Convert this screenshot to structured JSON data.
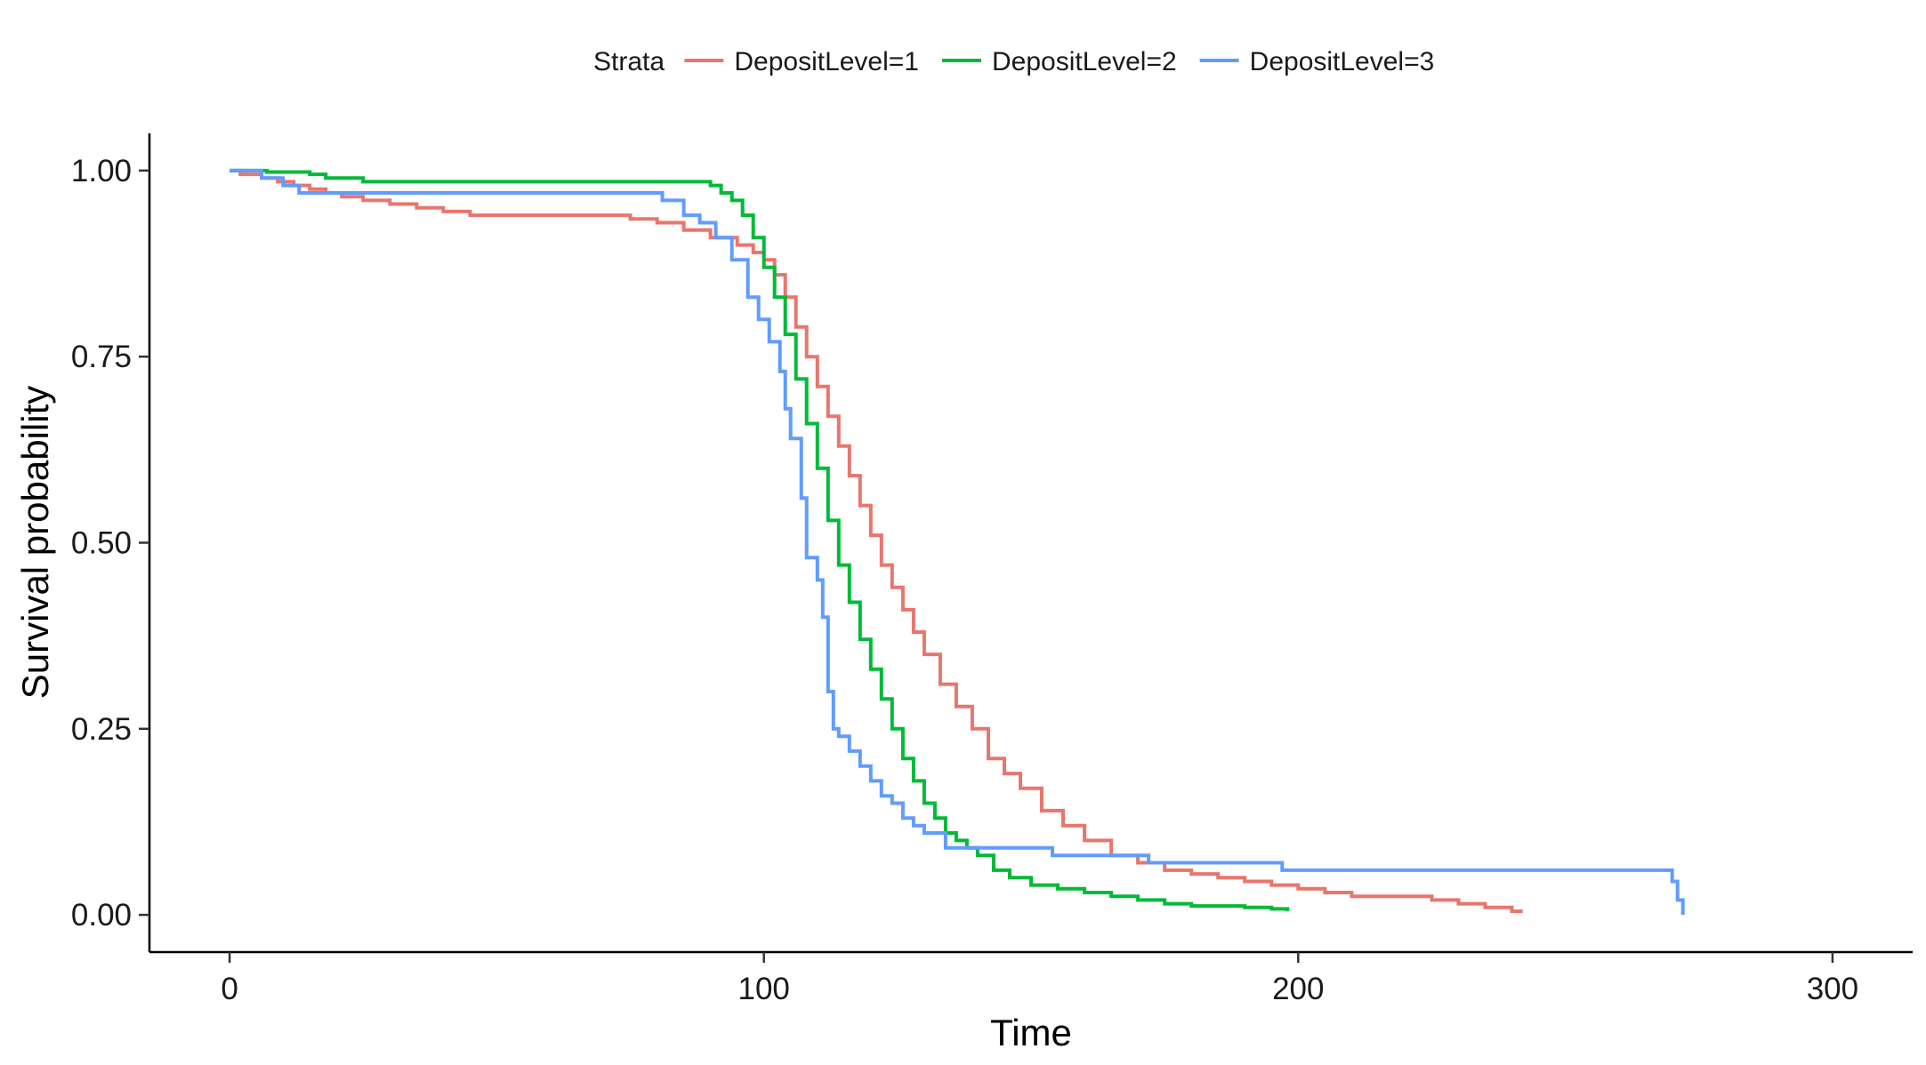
{
  "chart_data": {
    "type": "line",
    "step": true,
    "xlabel": "Time",
    "ylabel": "Survival probability",
    "xlim": [
      -15,
      315
    ],
    "ylim": [
      -0.05,
      1.05
    ],
    "xticks": [
      0,
      100,
      200,
      300
    ],
    "xtick_labels": [
      "0",
      "100",
      "200",
      "300"
    ],
    "yticks": [
      0,
      0.25,
      0.5,
      0.75,
      1.0
    ],
    "ytick_labels": [
      "0.00",
      "0.25",
      "0.50",
      "0.75",
      "1.00"
    ],
    "grid": false,
    "legend": {
      "position": "top",
      "title": "Strata"
    },
    "series": [
      {
        "name": "DepositLevel=1",
        "color": "#E8766D",
        "x": [
          0,
          2,
          6,
          9,
          12,
          15,
          18,
          21,
          25,
          30,
          35,
          40,
          45,
          55,
          65,
          75,
          80,
          85,
          90,
          95,
          98,
          100,
          102,
          104,
          106,
          108,
          110,
          112,
          114,
          116,
          118,
          120,
          122,
          124,
          126,
          128,
          130,
          133,
          136,
          139,
          142,
          145,
          148,
          152,
          156,
          160,
          165,
          170,
          175,
          180,
          185,
          190,
          195,
          200,
          205,
          210,
          215,
          220,
          225,
          230,
          235,
          240,
          242
        ],
        "y": [
          1.0,
          0.995,
          0.99,
          0.985,
          0.98,
          0.975,
          0.97,
          0.965,
          0.96,
          0.955,
          0.95,
          0.945,
          0.94,
          0.94,
          0.94,
          0.935,
          0.93,
          0.92,
          0.91,
          0.9,
          0.89,
          0.88,
          0.86,
          0.83,
          0.79,
          0.75,
          0.71,
          0.67,
          0.63,
          0.59,
          0.55,
          0.51,
          0.47,
          0.44,
          0.41,
          0.38,
          0.35,
          0.31,
          0.28,
          0.25,
          0.21,
          0.19,
          0.17,
          0.14,
          0.12,
          0.1,
          0.08,
          0.07,
          0.06,
          0.055,
          0.05,
          0.045,
          0.04,
          0.035,
          0.03,
          0.025,
          0.025,
          0.025,
          0.02,
          0.015,
          0.01,
          0.005,
          0.005
        ]
      },
      {
        "name": "DepositLevel=2",
        "color": "#00BA38",
        "x": [
          0,
          7,
          15,
          18,
          25,
          35,
          50,
          70,
          90,
          92,
          94,
          96,
          98,
          100,
          102,
          104,
          106,
          108,
          110,
          112,
          114,
          116,
          118,
          120,
          122,
          124,
          126,
          128,
          130,
          132,
          134,
          136,
          138,
          140,
          143,
          146,
          150,
          155,
          160,
          165,
          170,
          175,
          180,
          185,
          190,
          195,
          198
        ],
        "y": [
          1.0,
          0.998,
          0.995,
          0.99,
          0.985,
          0.985,
          0.985,
          0.985,
          0.98,
          0.97,
          0.96,
          0.94,
          0.91,
          0.87,
          0.83,
          0.78,
          0.72,
          0.66,
          0.6,
          0.53,
          0.47,
          0.42,
          0.37,
          0.33,
          0.29,
          0.25,
          0.21,
          0.18,
          0.15,
          0.13,
          0.11,
          0.1,
          0.09,
          0.08,
          0.06,
          0.05,
          0.04,
          0.035,
          0.03,
          0.025,
          0.02,
          0.015,
          0.012,
          0.012,
          0.01,
          0.008,
          0.005
        ]
      },
      {
        "name": "DepositLevel=3",
        "color": "#619CFF",
        "x": [
          0,
          6,
          10,
          13,
          81,
          85,
          88,
          91,
          94,
          97,
          99,
          101,
          103,
          104,
          105,
          107,
          108,
          110,
          111,
          112,
          113,
          114,
          116,
          118,
          120,
          122,
          124,
          126,
          128,
          130,
          134,
          154,
          172,
          197,
          270,
          271,
          272
        ],
        "y": [
          1.0,
          0.99,
          0.98,
          0.97,
          0.96,
          0.94,
          0.93,
          0.91,
          0.88,
          0.83,
          0.8,
          0.77,
          0.73,
          0.68,
          0.64,
          0.56,
          0.48,
          0.45,
          0.4,
          0.3,
          0.25,
          0.24,
          0.22,
          0.2,
          0.18,
          0.16,
          0.15,
          0.13,
          0.12,
          0.11,
          0.09,
          0.08,
          0.07,
          0.06,
          0.045,
          0.02,
          0.0
        ]
      }
    ]
  }
}
